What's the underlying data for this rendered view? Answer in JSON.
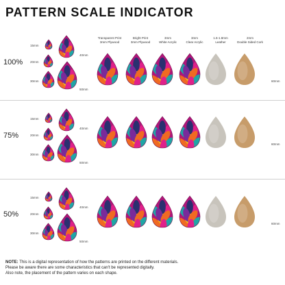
{
  "title": "PATTERN SCALE INDICATOR",
  "materials": [
    {
      "label_line1": "Transparent Print",
      "label_line2": "3mm Plywood",
      "base": "pattern"
    },
    {
      "label_line1": "Bright Print",
      "label_line2": "3mm Plywood",
      "base": "pattern"
    },
    {
      "label_line1": "3mm",
      "label_line2": "White Acrylic",
      "base": "pattern"
    },
    {
      "label_line1": "3mm",
      "label_line2": "Clear Acrylic",
      "base": "pattern"
    },
    {
      "label_line1": "1.6-1.8mm",
      "label_line2": "Leather",
      "base": "leather"
    },
    {
      "label_line1": "2mm",
      "label_line2": "Double Sided Cork",
      "base": "cork"
    }
  ],
  "sections": [
    {
      "percent": "100%",
      "size_15": "15mm",
      "size_20": "20mm",
      "size_30": "30mm",
      "size_40": "40mm",
      "size_50": "50mm",
      "row_size": "60mm"
    },
    {
      "percent": "75%",
      "size_15": "15mm",
      "size_20": "20mm",
      "size_30": "30mm",
      "size_40": "40mm",
      "size_50": "50mm",
      "row_size": "60mm"
    },
    {
      "percent": "50%",
      "size_15": "15mm",
      "size_20": "20mm",
      "size_30": "30mm",
      "size_40": "40mm",
      "size_50": "50mm",
      "row_size": "60mm"
    }
  ],
  "note": {
    "label": "NOTE:",
    "line1": " This is a digital representation of how the patterns are printed on the different materials.",
    "line2": "Please be aware there are some characteristics that can't be represented digitally.",
    "line3": "Also note, the placement of the pattern varies on each shape."
  },
  "colors": {
    "pink": "#e0218a",
    "magenta": "#b0157a",
    "teal": "#1fa6a6",
    "navy": "#2a3070",
    "yellow": "#f3c614",
    "orange": "#f06a22",
    "purple": "#7a2a9a",
    "leather": "#c8c4bc",
    "cork": "#c79c6a"
  }
}
